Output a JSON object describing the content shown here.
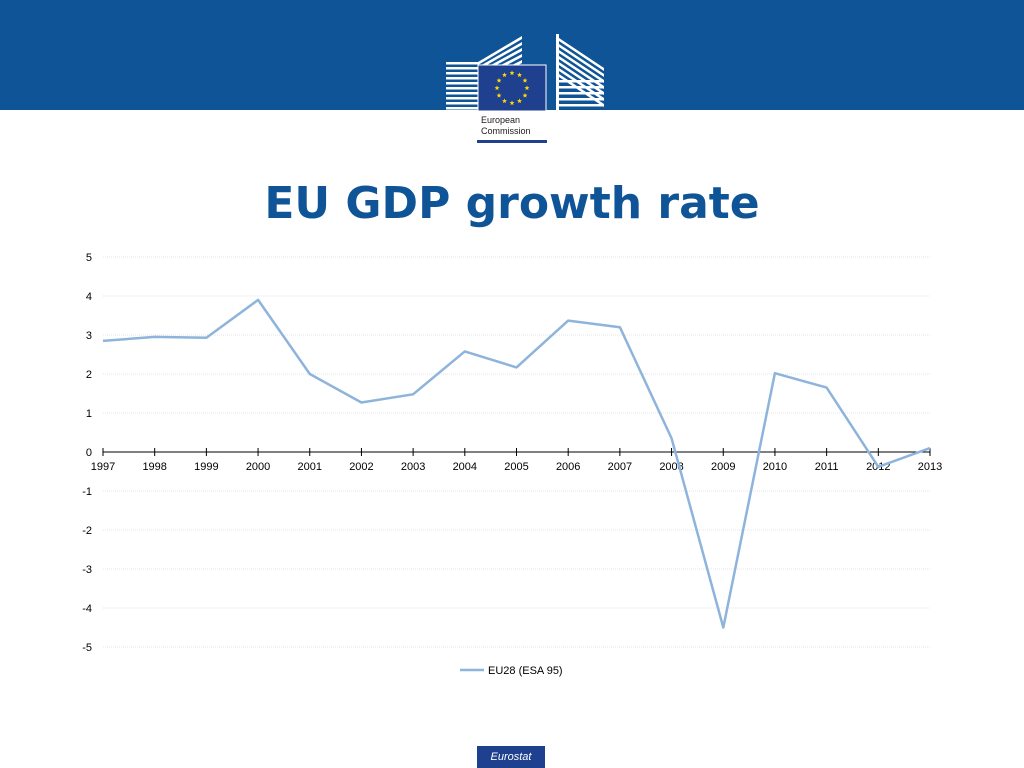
{
  "header": {
    "logo_line1": "European",
    "logo_line2": "Commission",
    "logo_icon": "eu-flag-icon",
    "band_color": "#0f5496"
  },
  "slide": {
    "title": "EU GDP growth rate"
  },
  "footer": {
    "badge": "Eurostat"
  },
  "chart_data": {
    "type": "line",
    "title": "",
    "xlabel": "",
    "ylabel": "",
    "categories": [
      "1997",
      "1998",
      "1999",
      "2000",
      "2001",
      "2002",
      "2003",
      "2004",
      "2005",
      "2006",
      "2007",
      "2008",
      "2009",
      "2010",
      "2011",
      "2012",
      "2013"
    ],
    "series": [
      {
        "name": "EU28 (ESA 95)",
        "color": "#8eb4dc",
        "values": [
          2.85,
          2.95,
          2.93,
          3.9,
          2.0,
          1.27,
          1.48,
          2.58,
          2.17,
          3.37,
          3.2,
          0.35,
          -4.5,
          2.02,
          1.65,
          -0.38,
          0.1
        ]
      }
    ],
    "ylim": [
      -5,
      5
    ],
    "yticks": [
      5,
      4,
      3,
      2,
      1,
      0,
      -1,
      -2,
      -3,
      -4,
      -5
    ],
    "grid": true,
    "legend": "bottom"
  }
}
